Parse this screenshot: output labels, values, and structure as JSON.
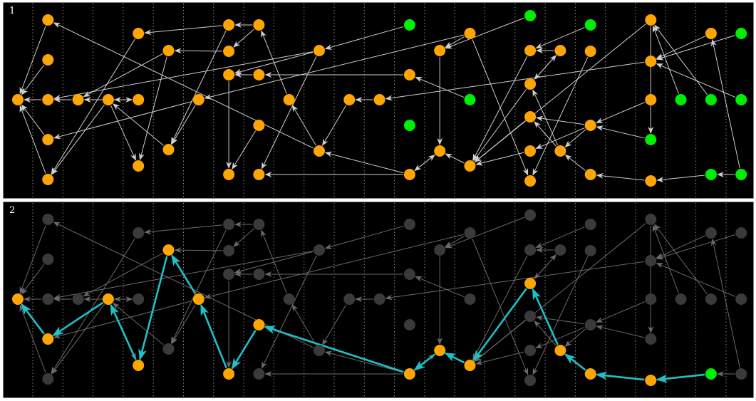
{
  "panels": [
    {
      "label": "1"
    },
    {
      "label": "2"
    }
  ],
  "colors": {
    "background": "#000000",
    "frame": "#ffffff",
    "node_active": "#ffa500",
    "node_source": "#00ee00",
    "node_dim": "#3a3a3a",
    "edge": "#cfcfcf",
    "edge_dim": "#6a6a6a",
    "path": "#1fc1c8",
    "grid": "#bbbbbb"
  },
  "columns": 25,
  "nodes": [
    {
      "id": "A1",
      "col": 0,
      "row": "mid",
      "kind": "node"
    },
    {
      "id": "B1",
      "col": 1,
      "row": "r1",
      "kind": "node"
    },
    {
      "id": "B2",
      "col": 1,
      "row": "r2",
      "kind": "node"
    },
    {
      "id": "B3",
      "col": 1,
      "row": "mid",
      "kind": "node"
    },
    {
      "id": "B4",
      "col": 1,
      "row": "r4",
      "kind": "node"
    },
    {
      "id": "B5",
      "col": 1,
      "row": "r6",
      "kind": "node"
    },
    {
      "id": "C1",
      "col": 2,
      "row": "mid",
      "kind": "node"
    },
    {
      "id": "D1",
      "col": 3,
      "row": "mid",
      "kind": "node"
    },
    {
      "id": "E1",
      "col": 4,
      "row": "r1b",
      "kind": "node"
    },
    {
      "id": "E2",
      "col": 4,
      "row": "mid",
      "kind": "node"
    },
    {
      "id": "E3",
      "col": 4,
      "row": "r5",
      "kind": "node"
    },
    {
      "id": "F1",
      "col": 5,
      "row": "r2a",
      "kind": "node"
    },
    {
      "id": "F2",
      "col": 5,
      "row": "r4b",
      "kind": "node"
    },
    {
      "id": "G1",
      "col": 6,
      "row": "mid",
      "kind": "node"
    },
    {
      "id": "H1",
      "col": 7,
      "row": "r0",
      "kind": "node"
    },
    {
      "id": "H2",
      "col": 7,
      "row": "r3a",
      "kind": "node"
    },
    {
      "id": "H3",
      "col": 7,
      "row": "r3b",
      "kind": "node"
    },
    {
      "id": "H4",
      "col": 7,
      "row": "r5b",
      "kind": "node"
    },
    {
      "id": "I1",
      "col": 8,
      "row": "r0",
      "kind": "node"
    },
    {
      "id": "I2",
      "col": 8,
      "row": "r3a",
      "kind": "node"
    },
    {
      "id": "I3",
      "col": 8,
      "row": "r3c",
      "kind": "node"
    },
    {
      "id": "I4",
      "col": 8,
      "row": "r5b",
      "kind": "node"
    },
    {
      "id": "J1",
      "col": 9,
      "row": "mid",
      "kind": "node"
    },
    {
      "id": "K1",
      "col": 10,
      "row": "r2a",
      "kind": "node"
    },
    {
      "id": "K2",
      "col": 10,
      "row": "r4c",
      "kind": "node"
    },
    {
      "id": "L1",
      "col": 11,
      "row": "mid",
      "kind": "node"
    },
    {
      "id": "M1",
      "col": 12,
      "row": "mid",
      "kind": "node"
    },
    {
      "id": "N1",
      "col": 13,
      "row": "r0",
      "kind": "source"
    },
    {
      "id": "N2",
      "col": 13,
      "row": "r3a",
      "kind": "node"
    },
    {
      "id": "N3",
      "col": 13,
      "row": "r3c",
      "kind": "source"
    },
    {
      "id": "N4",
      "col": 13,
      "row": "r5b",
      "kind": "node"
    },
    {
      "id": "O1",
      "col": 14,
      "row": "r2a",
      "kind": "node"
    },
    {
      "id": "O2",
      "col": 14,
      "row": "r4c",
      "kind": "node"
    },
    {
      "id": "P1",
      "col": 15,
      "row": "r1b",
      "kind": "node"
    },
    {
      "id": "P2",
      "col": 15,
      "row": "mid",
      "kind": "source"
    },
    {
      "id": "P3",
      "col": 15,
      "row": "r5",
      "kind": "node"
    },
    {
      "id": "R1",
      "col": 17,
      "row": "top",
      "kind": "source"
    },
    {
      "id": "R2",
      "col": 17,
      "row": "r2a",
      "kind": "node"
    },
    {
      "id": "R3",
      "col": 17,
      "row": "r3x",
      "kind": "node"
    },
    {
      "id": "R4",
      "col": 17,
      "row": "r3y",
      "kind": "node"
    },
    {
      "id": "R5",
      "col": 17,
      "row": "r4c",
      "kind": "node"
    },
    {
      "id": "R6",
      "col": 17,
      "row": "r6b",
      "kind": "node"
    },
    {
      "id": "S1",
      "col": 18,
      "row": "r2a",
      "kind": "node"
    },
    {
      "id": "S2",
      "col": 18,
      "row": "r4c",
      "kind": "node"
    },
    {
      "id": "T1",
      "col": 19,
      "row": "r0",
      "kind": "source"
    },
    {
      "id": "T2",
      "col": 19,
      "row": "r3b",
      "kind": "node"
    },
    {
      "id": "T3",
      "col": 19,
      "row": "r3c",
      "kind": "node"
    },
    {
      "id": "T4",
      "col": 19,
      "row": "r5b",
      "kind": "node"
    },
    {
      "id": "V1",
      "col": 21,
      "row": "r0a",
      "kind": "node"
    },
    {
      "id": "V2",
      "col": 21,
      "row": "r2b",
      "kind": "node"
    },
    {
      "id": "V3",
      "col": 21,
      "row": "mid",
      "kind": "node"
    },
    {
      "id": "V4",
      "col": 21,
      "row": "r4",
      "kind": "source"
    },
    {
      "id": "V5",
      "col": 21,
      "row": "r6b",
      "kind": "node"
    },
    {
      "id": "W1",
      "col": 22,
      "row": "mid",
      "kind": "source"
    },
    {
      "id": "X1",
      "col": 23,
      "row": "r1b",
      "kind": "node"
    },
    {
      "id": "X2",
      "col": 23,
      "row": "mid",
      "kind": "source"
    },
    {
      "id": "X3",
      "col": 23,
      "row": "r5b",
      "kind": "source"
    },
    {
      "id": "Y1",
      "col": 24,
      "row": "r1b",
      "kind": "source"
    },
    {
      "id": "Y2",
      "col": 24,
      "row": "mid",
      "kind": "source"
    },
    {
      "id": "Y3",
      "col": 24,
      "row": "r5b",
      "kind": "source"
    }
  ],
  "edges": [
    [
      "B1",
      "A1"
    ],
    [
      "B2",
      "A1"
    ],
    [
      "B4",
      "A1"
    ],
    [
      "B5",
      "A1"
    ],
    [
      "B3",
      "A1"
    ],
    [
      "C1",
      "B3"
    ],
    [
      "E2",
      "C1"
    ],
    [
      "D1",
      "B5"
    ],
    [
      "D1",
      "E3"
    ],
    [
      "E1",
      "B5"
    ],
    [
      "E2",
      "D1"
    ],
    [
      "F1",
      "E3"
    ],
    [
      "F1",
      "C1"
    ],
    [
      "F2",
      "D1"
    ],
    [
      "G1",
      "F2"
    ],
    [
      "G1",
      "B4"
    ],
    [
      "H1",
      "F2"
    ],
    [
      "H2",
      "H4"
    ],
    [
      "I1",
      "H1"
    ],
    [
      "I1",
      "H3"
    ],
    [
      "I2",
      "H2"
    ],
    [
      "H3",
      "F1"
    ],
    [
      "I3",
      "H4"
    ],
    [
      "J1",
      "I1"
    ],
    [
      "K1",
      "B3"
    ],
    [
      "K1",
      "H2"
    ],
    [
      "K1",
      "I4"
    ],
    [
      "K2",
      "J1"
    ],
    [
      "K2",
      "B1"
    ],
    [
      "L1",
      "K2"
    ],
    [
      "M1",
      "L1"
    ],
    [
      "N1",
      "K1"
    ],
    [
      "N2",
      "I2"
    ],
    [
      "P2",
      "N2"
    ],
    [
      "O1",
      "O2"
    ],
    [
      "N4",
      "O2"
    ],
    [
      "O2",
      "N4"
    ],
    [
      "N4",
      "I4"
    ],
    [
      "N4",
      "K2"
    ],
    [
      "P1",
      "O1"
    ],
    [
      "P1",
      "R6"
    ],
    [
      "P3",
      "O2"
    ],
    [
      "R1",
      "O1"
    ],
    [
      "R3",
      "P3"
    ],
    [
      "R4",
      "P3"
    ],
    [
      "R5",
      "P3"
    ],
    [
      "R2",
      "P3"
    ],
    [
      "R3",
      "S1"
    ],
    [
      "S1",
      "R3"
    ],
    [
      "S2",
      "R3"
    ],
    [
      "S2",
      "R4"
    ],
    [
      "T1",
      "R2"
    ],
    [
      "T2",
      "R6"
    ],
    [
      "T3",
      "S2"
    ],
    [
      "T3",
      "R4"
    ],
    [
      "T3",
      "R5"
    ],
    [
      "T4",
      "S2"
    ],
    [
      "V1",
      "P3"
    ],
    [
      "V1",
      "V4"
    ],
    [
      "V2",
      "M1"
    ],
    [
      "V3",
      "T3"
    ],
    [
      "V4",
      "T3"
    ],
    [
      "V5",
      "T4"
    ],
    [
      "W1",
      "V1"
    ],
    [
      "X1",
      "V2"
    ],
    [
      "X3",
      "V5"
    ],
    [
      "Y1",
      "V2"
    ],
    [
      "Y3",
      "X3"
    ],
    [
      "X2",
      "V1"
    ],
    [
      "Y2",
      "V2"
    ],
    [
      "Y3",
      "X1"
    ],
    [
      "P1",
      "G1"
    ],
    [
      "D1",
      "E2"
    ],
    [
      "H1",
      "E1"
    ],
    [
      "S1",
      "R2"
    ]
  ],
  "highlight": {
    "nodes": [
      "A1",
      "B4",
      "D1",
      "E3",
      "F1",
      "G1",
      "H4",
      "I3",
      "N4",
      "O2",
      "P3",
      "R3",
      "S2",
      "T4",
      "V5",
      "X3"
    ],
    "path": [
      "X3",
      "V5",
      "T4",
      "S2",
      "R3",
      "P3",
      "O2",
      "N4",
      "I3",
      "H4",
      "G1",
      "F1",
      "E3",
      "D1",
      "B4",
      "A1"
    ]
  }
}
